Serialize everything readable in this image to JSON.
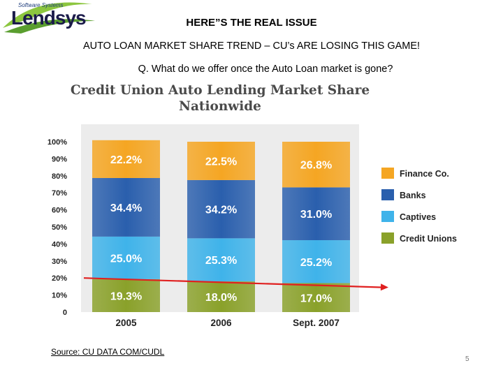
{
  "header": {
    "logo_sub": "Software Systems",
    "logo_main": "Lendsys",
    "title": "HERE”S THE REAL ISSUE",
    "subtitle": "AUTO LOAN MARKET SHARE TREND – CU’s ARE LOSING THIS GAME!",
    "question": "Q. What do we offer once the Auto Loan market is gone?"
  },
  "chart_data": {
    "type": "bar",
    "stacked": true,
    "title": "Credit Union Auto Lending Market Share Nationwide",
    "title_lines": [
      "Credit Union Auto Lending Market Share",
      "Nationwide"
    ],
    "categories": [
      "2005",
      "2006",
      "Sept. 2007"
    ],
    "y_ticks": [
      "0",
      "10%",
      "20%",
      "30%",
      "40%",
      "50%",
      "60%",
      "70%",
      "80%",
      "90%",
      "100%"
    ],
    "ylim": [
      0,
      100
    ],
    "series": [
      {
        "name": "Credit Unions",
        "color": "#8aa12a",
        "values": [
          19.3,
          18.0,
          17.0
        ],
        "labels": [
          "19.3%",
          "18.0%",
          "17.0%"
        ]
      },
      {
        "name": "Captives",
        "color": "#3fb3ea",
        "values": [
          25.0,
          25.3,
          25.2
        ],
        "labels": [
          "25.0%",
          "25.3%",
          "25.2%"
        ]
      },
      {
        "name": "Banks",
        "color": "#2a5fad",
        "values": [
          34.4,
          34.2,
          31.0
        ],
        "labels": [
          "34.4%",
          "34.2%",
          "31.0%"
        ]
      },
      {
        "name": "Finance Co.",
        "color": "#f5a623",
        "values": [
          22.2,
          22.5,
          26.8
        ],
        "labels": [
          "22.2%",
          "22.5%",
          "26.8%"
        ]
      }
    ],
    "legend_order": [
      "Finance Co.",
      "Banks",
      "Captives",
      "Credit Unions"
    ],
    "legend_position": "right",
    "trend_arrow": {
      "color": "#e02020",
      "from": 20.0,
      "to": 14.5
    }
  },
  "footer": {
    "source": "Source: CU DATA COM/CUDL",
    "page_number": "5"
  }
}
